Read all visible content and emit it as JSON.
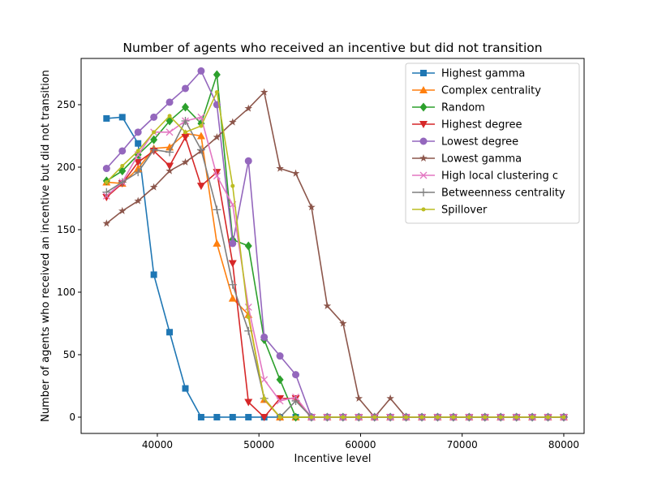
{
  "chart_data": {
    "type": "line",
    "title": "Number of agents who received an incentive but did not transition",
    "xlabel": "Incentive level",
    "ylabel": "Number of agents who received an incentive but did not transition",
    "xlim": [
      32500,
      82000
    ],
    "ylim": [
      -13,
      287
    ],
    "xticks": [
      40000,
      50000,
      60000,
      70000,
      80000
    ],
    "yticks": [
      0,
      50,
      100,
      150,
      200,
      250
    ],
    "grid": false,
    "legend_position": "top-right",
    "x": [
      35000,
      36552,
      38103,
      39655,
      41207,
      42759,
      44310,
      45862,
      47414,
      48966,
      50517,
      52069,
      53621,
      55172,
      56724,
      58276,
      59828,
      61379,
      62931,
      64483,
      66034,
      67586,
      69138,
      70690,
      72241,
      73793,
      75345,
      76897,
      78448,
      80000
    ],
    "series": [
      {
        "name": "Highest gamma",
        "color": "#1f77b4",
        "marker": "square",
        "values": [
          239,
          240,
          219,
          114,
          68,
          23,
          0,
          0,
          0,
          0,
          0,
          0,
          0,
          0,
          0,
          0,
          0,
          0,
          0,
          0,
          0,
          0,
          0,
          0,
          0,
          0,
          0,
          0,
          0,
          0
        ]
      },
      {
        "name": "Complex centrality",
        "color": "#ff7f0e",
        "marker": "triangle-up",
        "values": [
          188,
          187,
          199,
          215,
          216,
          227,
          225,
          139,
          95,
          82,
          14,
          0,
          0,
          0,
          0,
          0,
          0,
          0,
          0,
          0,
          0,
          0,
          0,
          0,
          0,
          0,
          0,
          0,
          0,
          0
        ]
      },
      {
        "name": "Random",
        "color": "#2ca02c",
        "marker": "diamond",
        "values": [
          189,
          197,
          210,
          222,
          237,
          248,
          235,
          274,
          142,
          137,
          62,
          30,
          0,
          0,
          0,
          0,
          0,
          0,
          0,
          0,
          0,
          0,
          0,
          0,
          0,
          0,
          0,
          0,
          0,
          0
        ]
      },
      {
        "name": "Highest degree",
        "color": "#d62728",
        "marker": "triangle-down",
        "values": [
          176,
          187,
          204,
          213,
          201,
          224,
          185,
          196,
          123,
          12,
          0,
          15,
          15,
          0,
          0,
          0,
          0,
          0,
          0,
          0,
          0,
          0,
          0,
          0,
          0,
          0,
          0,
          0,
          0,
          0
        ]
      },
      {
        "name": "Lowest degree",
        "color": "#9467bd",
        "marker": "circle",
        "values": [
          199,
          213,
          228,
          240,
          252,
          263,
          277,
          250,
          139,
          205,
          64,
          49,
          34,
          0,
          0,
          0,
          0,
          0,
          0,
          0,
          0,
          0,
          0,
          0,
          0,
          0,
          0,
          0,
          0,
          0
        ]
      },
      {
        "name": "Lowest gamma",
        "color": "#8c564b",
        "marker": "star",
        "values": [
          155,
          165,
          173,
          184,
          197,
          204,
          213,
          224,
          236,
          247,
          260,
          199,
          195,
          168,
          89,
          75,
          15,
          0,
          15,
          0,
          0,
          0,
          0,
          0,
          0,
          0,
          0,
          0,
          0,
          0
        ]
      },
      {
        "name": "High local clustering c",
        "color": "#e377c2",
        "marker": "x",
        "values": [
          177,
          188,
          210,
          228,
          228,
          237,
          240,
          193,
          170,
          88,
          30,
          13,
          16,
          0,
          0,
          0,
          0,
          0,
          0,
          0,
          0,
          0,
          0,
          0,
          0,
          0,
          0,
          0,
          0,
          0
        ]
      },
      {
        "name": "Betweenness centrality",
        "color": "#7f7f7f",
        "marker": "plus",
        "values": [
          180,
          188,
          196,
          214,
          212,
          237,
          214,
          166,
          106,
          69,
          15,
          0,
          13,
          0,
          0,
          0,
          0,
          0,
          0,
          0,
          0,
          0,
          0,
          0,
          0,
          0,
          0,
          0,
          0,
          0
        ]
      },
      {
        "name": "Spillover",
        "color": "#bcbd22",
        "marker": "point",
        "values": [
          188,
          201,
          213,
          228,
          241,
          228,
          233,
          260,
          185,
          80,
          15,
          0,
          0,
          0,
          0,
          0,
          0,
          0,
          0,
          0,
          0,
          0,
          0,
          0,
          0,
          0,
          0,
          0,
          0,
          0
        ]
      }
    ]
  }
}
